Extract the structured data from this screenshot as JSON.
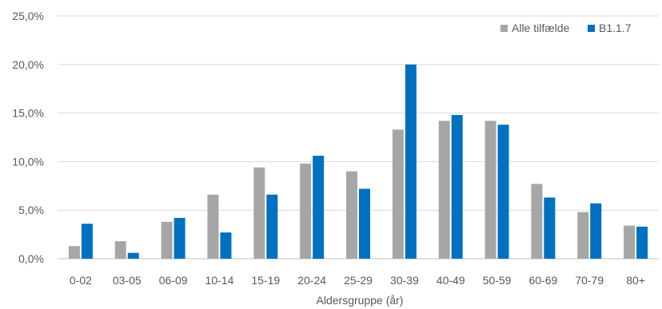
{
  "chart_data": {
    "type": "bar",
    "categories": [
      "0-02",
      "03-05",
      "06-09",
      "10-14",
      "15-19",
      "20-24",
      "25-29",
      "30-39",
      "40-49",
      "50-59",
      "60-69",
      "70-79",
      "80+"
    ],
    "series": [
      {
        "name": "Alle tilfælde",
        "color": "#a6a6a6",
        "values": [
          1.3,
          1.8,
          3.8,
          6.6,
          9.4,
          9.8,
          9.0,
          13.3,
          14.2,
          14.2,
          7.7,
          4.8,
          3.4
        ]
      },
      {
        "name": "B1.1.7",
        "color": "#0070c0",
        "values": [
          3.6,
          0.6,
          4.2,
          2.7,
          6.6,
          10.6,
          7.2,
          20.0,
          14.8,
          13.8,
          6.3,
          5.7,
          3.3
        ]
      }
    ],
    "yticks": [
      "0,0%",
      "5,0%",
      "10,0%",
      "15,0%",
      "20,0%",
      "25,0%"
    ],
    "ylim": [
      0,
      25
    ],
    "xlabel": "Aldersgruppe (år)",
    "ylabel": "",
    "title": "",
    "grid": true,
    "legend_position": "top-right"
  }
}
